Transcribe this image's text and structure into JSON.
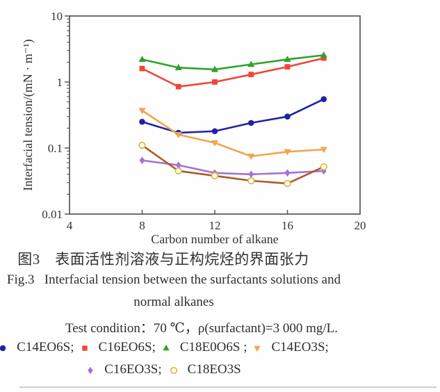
{
  "chart_data": {
    "type": "line",
    "xlabel": "Carbon number of alkane",
    "ylabel": "Interfacial tension/(mN · m⁻¹)",
    "xscale": "linear",
    "yscale": "log",
    "xlim": [
      4,
      20
    ],
    "ylim": [
      0.01,
      10
    ],
    "xticks": [
      4,
      8,
      12,
      16,
      20
    ],
    "yticks": [
      10,
      1,
      0.1,
      0.01
    ],
    "ytick_labels": [
      "10",
      "1",
      "0.1",
      "0.01"
    ],
    "x": [
      8,
      10,
      12,
      14,
      16,
      18
    ],
    "grid": false,
    "series": [
      {
        "name": "C14EO6S",
        "marker": "circle",
        "color": "#2221a6",
        "marker_color": "#2221a6",
        "values": [
          0.25,
          0.17,
          0.18,
          0.24,
          0.3,
          0.55
        ]
      },
      {
        "name": "C16EO6S",
        "marker": "square",
        "color": "#ef4637",
        "marker_color": "#ef4637",
        "values": [
          1.6,
          0.85,
          1.0,
          1.3,
          1.7,
          2.3
        ]
      },
      {
        "name": "C18E0O6S",
        "marker": "triangle-up",
        "color": "#2da32d",
        "marker_color": "#2da32d",
        "values": [
          2.2,
          1.65,
          1.55,
          1.85,
          2.2,
          2.55
        ]
      },
      {
        "name": "C14EO3S",
        "marker": "triangle-down",
        "color": "#f2a44e",
        "marker_color": "#f2a44e",
        "values": [
          0.37,
          0.16,
          0.12,
          0.075,
          0.088,
          0.095
        ]
      },
      {
        "name": "C16EO3S",
        "marker": "diamond",
        "color": "#a571d6",
        "marker_color": "#a571d6",
        "values": [
          0.065,
          0.055,
          0.042,
          0.04,
          0.042,
          0.045
        ]
      },
      {
        "name": "C18EO3S",
        "marker": "circle-open",
        "color": "#ad5a26",
        "marker_color": "#dcb83e",
        "values": [
          0.11,
          0.045,
          0.038,
          0.032,
          0.029,
          0.052
        ]
      }
    ]
  },
  "captions": {
    "zh": "图3　表面活性剂溶液与正构烷烃的界面张力",
    "en_line1": "Fig.3   Interfacial tension between the surfactants solutions and",
    "en_line2": "normal alkanes",
    "test_condition": "Test condition：70 ℃，ρ(surfactant)=3 000 mg/L."
  },
  "legend": {
    "rows": [
      [
        {
          "series_index": 0,
          "label": "C14EO6S;"
        },
        {
          "series_index": 1,
          "label": "C16EO6S;"
        },
        {
          "series_index": 2,
          "label": "C18E0O6S ;"
        },
        {
          "series_index": 3,
          "label": "C14EO3S;"
        }
      ],
      [
        {
          "series_index": 4,
          "label": "C16EO3S;"
        },
        {
          "series_index": 5,
          "label": "C18EO3S"
        }
      ]
    ]
  },
  "colors": {
    "axis": "#4a4a4a",
    "tick_text": "#333333",
    "divider": "#cfcfcf"
  }
}
